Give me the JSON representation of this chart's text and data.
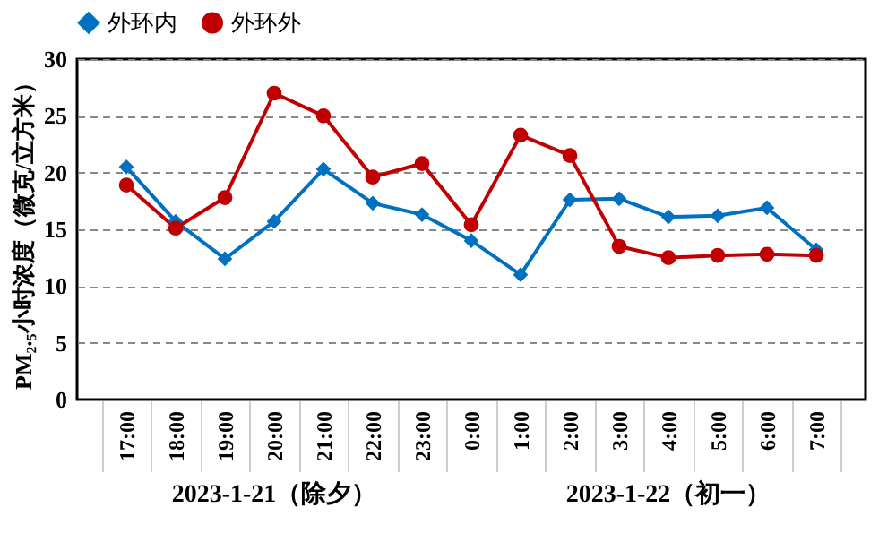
{
  "chart_data": {
    "type": "line",
    "ylabel": "PM₂.₅小时浓度（微克/立方米）",
    "categories": [
      "17:00",
      "18:00",
      "19:00",
      "20:00",
      "21:00",
      "22:00",
      "23:00",
      "0:00",
      "1:00",
      "2:00",
      "3:00",
      "4:00",
      "5:00",
      "6:00",
      "7:00"
    ],
    "series": [
      {
        "name": "外环内",
        "color": "#0070c0",
        "marker": "diamond",
        "values": [
          20.5,
          15.7,
          12.4,
          15.7,
          20.3,
          17.3,
          16.3,
          14.0,
          11.0,
          17.6,
          17.7,
          16.1,
          16.2,
          16.9,
          13.2
        ]
      },
      {
        "name": "外环外",
        "color": "#c00000",
        "marker": "circle",
        "values": [
          18.9,
          15.1,
          17.8,
          27.0,
          25.0,
          19.6,
          20.8,
          15.4,
          23.3,
          21.5,
          13.5,
          12.5,
          12.7,
          12.8,
          12.7
        ]
      }
    ],
    "ylim": [
      0,
      30
    ],
    "yticks": [
      0,
      5,
      10,
      15,
      20,
      25,
      30
    ],
    "grid": "y",
    "legend": "top",
    "annotations": [
      "2023-1-21（除夕）",
      "2023-1-22（初一）"
    ]
  }
}
